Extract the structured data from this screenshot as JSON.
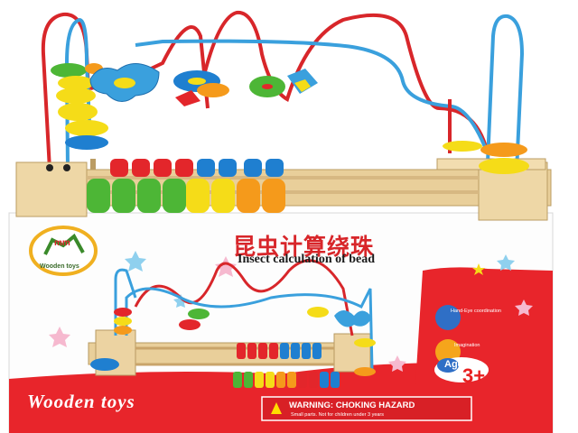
{
  "box": {
    "title_cn": "昆虫计算绕珠",
    "title_en": "Insect calculation of bead",
    "bottom_label": "Wooden  toys",
    "logo_label": "Wooden toys",
    "warning": "WARNING: CHOKING HAZARD",
    "warning_sub": "Small parts. Not for children under 3 years",
    "age_label": "Age",
    "age_value": "3+",
    "feature_1": "Hand-Eye coordination",
    "feature_2": "Imagination"
  },
  "colors": {
    "box_red": "#e8252b",
    "wood": "#e9cf9a",
    "wire_red": "#d8262a",
    "wire_blue": "#3aa0dd",
    "bead_red": "#e3262b",
    "bead_blue": "#1f7fd0",
    "bead_green": "#4db636",
    "bead_yellow": "#f5dc18",
    "bead_orange": "#f59a1b"
  }
}
